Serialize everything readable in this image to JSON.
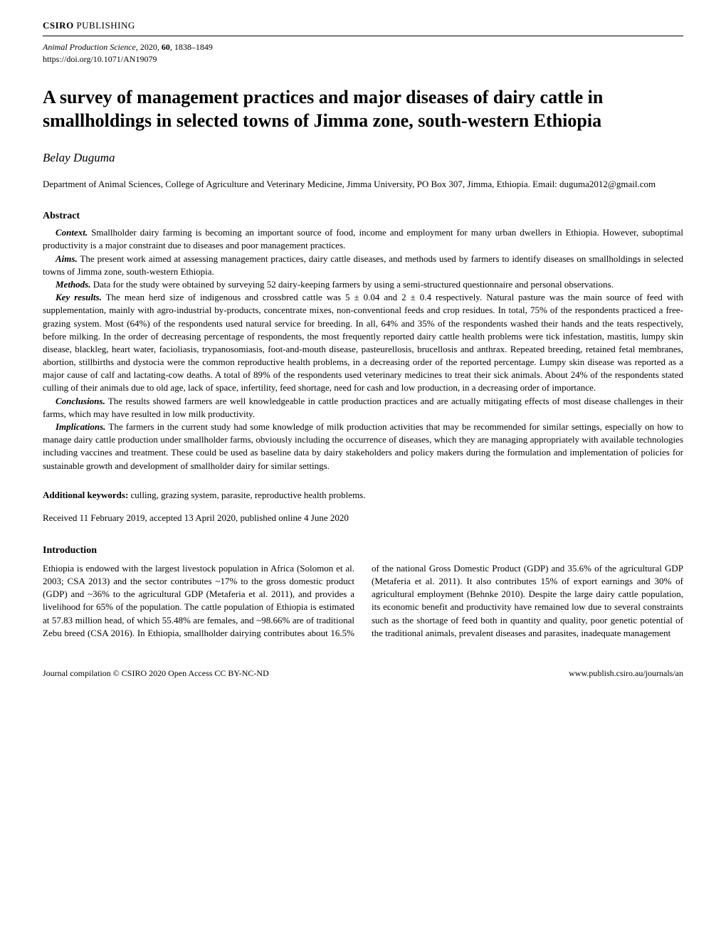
{
  "header": {
    "publisher_bold": "CSIRO",
    "publisher_light": " PUBLISHING"
  },
  "meta": {
    "journal_name": "Animal Production Science",
    "year": ", 2020, ",
    "volume": "60",
    "pages": ", 1838–1849",
    "doi": "https://doi.org/10.1071/AN19079"
  },
  "title": "A survey of management practices and major diseases of dairy cattle in smallholdings in selected towns of Jimma zone, south-western Ethiopia",
  "author": "Belay Duguma",
  "affiliation": "Department of Animal Sciences, College of Agriculture and Veterinary Medicine, Jimma University, PO Box 307, Jimma, Ethiopia. Email: duguma2012@gmail.com",
  "abstract": {
    "heading": "Abstract",
    "context_label": "Context.",
    "context_text": " Smallholder dairy farming is becoming an important source of food, income and employment for many urban dwellers in Ethiopia. However, suboptimal productivity is a major constraint due to diseases and poor management practices.",
    "aims_label": "Aims.",
    "aims_text": " The present work aimed at assessing management practices, dairy cattle diseases, and methods used by farmers to identify diseases on smallholdings in selected towns of Jimma zone, south-western Ethiopia.",
    "methods_label": "Methods.",
    "methods_text": " Data for the study were obtained by surveying 52 dairy-keeping farmers by using a semi-structured questionnaire and personal observations.",
    "key_label": "Key results.",
    "key_text": " The mean herd size of indigenous and crossbred cattle was 5 ± 0.04 and 2 ± 0.4 respectively. Natural pasture was the main source of feed with supplementation, mainly with agro-industrial by-products, concentrate mixes, non-conventional feeds and crop residues. In total, 75% of the respondents practiced a free-grazing system. Most (64%) of the respondents used natural service for breeding. In all, 64% and 35% of the respondents washed their hands and the teats respectively, before milking. In the order of decreasing percentage of respondents, the most frequently reported dairy cattle health problems were tick infestation, mastitis, lumpy skin disease, blackleg, heart water, facioliasis, trypanosomiasis, foot-and-mouth disease, pasteurellosis, brucellosis and anthrax. Repeated breeding, retained fetal membranes, abortion, stillbirths and dystocia were the common reproductive health problems, in a decreasing order of the reported percentage. Lumpy skin disease was reported as a major cause of calf and lactating-cow deaths. A total of 89% of the respondents used veterinary medicines to treat their sick animals. About 24% of the respondents stated culling of their animals due to old age, lack of space, infertility, feed shortage, need for cash and low production, in a decreasing order of importance.",
    "conclusions_label": "Conclusions.",
    "conclusions_text": " The results showed farmers are well knowledgeable in cattle production practices and are actually mitigating effects of most disease challenges in their farms, which may have resulted in low milk productivity.",
    "implications_label": "Implications.",
    "implications_text": " The farmers in the current study had some knowledge of milk production activities that may be recommended for similar settings, especially on how to manage dairy cattle production under smallholder farms, obviously including the occurrence of diseases, which they are managing appropriately with available technologies including vaccines and treatment. These could be used as baseline data by dairy stakeholders and policy makers during the formulation and implementation of policies for sustainable growth and development of smallholder dairy for similar settings."
  },
  "keywords": {
    "label": "Additional keywords:",
    "text": "  culling, grazing system, parasite, reproductive health problems."
  },
  "dates": "Received 11 February 2019, accepted 13 April 2020, published online 4 June 2020",
  "intro": {
    "heading": "Introduction",
    "body": "Ethiopia is endowed with the largest livestock population in Africa (Solomon et al. 2003; CSA 2013) and the sector contributes ~17% to the gross domestic product (GDP) and ~36% to the agricultural GDP (Metaferia et al. 2011), and provides a livelihood for 65% of the population. The cattle population of Ethiopia is estimated at 57.83 million head, of which 55.48% are females, and ~98.66% are of traditional Zebu breed (CSA 2016). In Ethiopia, smallholder dairying contributes about 16.5% of the national Gross Domestic Product (GDP) and 35.6% of the agricultural GDP (Metaferia et al. 2011). It also contributes 15% of export earnings and 30% of agricultural employment (Behnke 2010).     Despite the large dairy cattle population, its economic benefit and productivity have remained low due to several constraints such as the shortage of feed both in quantity and quality, poor genetic potential of the traditional animals, prevalent diseases and parasites, inadequate management"
  },
  "footer": {
    "left": "Journal compilation © CSIRO 2020 Open Access CC BY-NC-ND",
    "right": "www.publish.csiro.au/journals/an"
  }
}
